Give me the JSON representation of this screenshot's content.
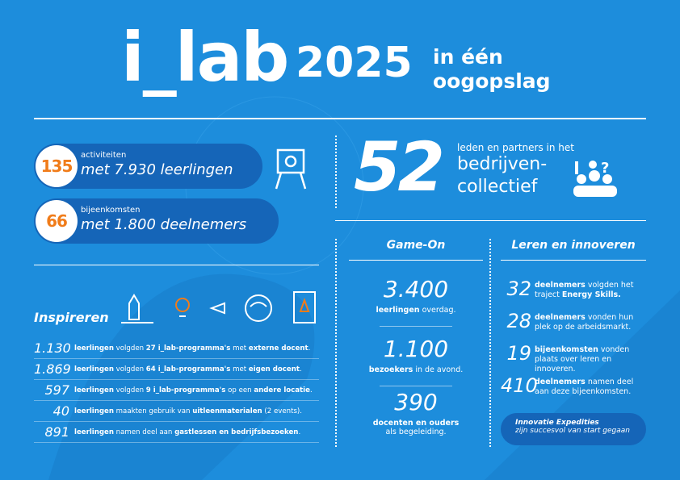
{
  "header": {
    "logo": "i_lab",
    "year": "2025",
    "tagline": [
      "in één",
      "oogopslag"
    ]
  },
  "highlights": [
    {
      "number": "135",
      "label": "activiteiten",
      "detail": "met 7.930 leerlingen"
    },
    {
      "number": "66",
      "label": "bijeenkomsten",
      "detail": "met 1.800 deelnemers"
    }
  ],
  "collective": {
    "number": "52",
    "label": "leden en partners in het",
    "lines": [
      "bedrijven-",
      "collectief"
    ]
  },
  "inspireren": {
    "title": "Inspireren",
    "rows": [
      {
        "number": "1.130",
        "segments": [
          {
            "text": "leerlingen",
            "bold": true
          },
          {
            "text": " volgden ",
            "bold": false
          },
          {
            "text": "27 i_lab-programma's",
            "bold": true
          },
          {
            "text": " met ",
            "bold": false
          },
          {
            "text": "externe docent",
            "bold": true
          },
          {
            "text": ".",
            "bold": false
          }
        ]
      },
      {
        "number": "1.869",
        "segments": [
          {
            "text": "leerlingen",
            "bold": true
          },
          {
            "text": " volgden ",
            "bold": false
          },
          {
            "text": "64 i_lab-programma's",
            "bold": true
          },
          {
            "text": " met ",
            "bold": false
          },
          {
            "text": "eigen docent",
            "bold": true
          },
          {
            "text": ".",
            "bold": false
          }
        ]
      },
      {
        "number": "597",
        "segments": [
          {
            "text": "leerlingen",
            "bold": true
          },
          {
            "text": " volgden ",
            "bold": false
          },
          {
            "text": "9 i_lab-programma's",
            "bold": true
          },
          {
            "text": " op een ",
            "bold": false
          },
          {
            "text": "andere locatie",
            "bold": true
          },
          {
            "text": ".",
            "bold": false
          }
        ]
      },
      {
        "number": "40",
        "segments": [
          {
            "text": "leerlingen",
            "bold": true
          },
          {
            "text": " maakten gebruik van ",
            "bold": false
          },
          {
            "text": "uitleenmaterialen",
            "bold": true
          },
          {
            "text": " (2 events).",
            "bold": false
          }
        ]
      },
      {
        "number": "891",
        "segments": [
          {
            "text": "leerlingen",
            "bold": true
          },
          {
            "text": " namen deel aan ",
            "bold": false
          },
          {
            "text": "gastlessen en bedrijfsbezoeken",
            "bold": true
          },
          {
            "text": ".",
            "bold": false
          }
        ]
      }
    ]
  },
  "game_on": {
    "title": "Game-On",
    "items": [
      {
        "number": "3.400",
        "segments": [
          {
            "text": "leerlingen",
            "bold": true
          },
          {
            "text": " overdag.",
            "bold": false
          }
        ]
      },
      {
        "number": "1.100",
        "segments": [
          {
            "text": "bezoekers",
            "bold": true
          },
          {
            "text": " in de avond.",
            "bold": false
          }
        ]
      },
      {
        "number": "390",
        "segments": [
          {
            "text": "docenten en ouders",
            "bold": true
          },
          {
            "text": " als begeleiding.",
            "bold": false
          }
        ]
      }
    ]
  },
  "leren": {
    "title": "Leren en innoveren",
    "items": [
      {
        "number": "32",
        "segments": [
          {
            "text": "deelnemers",
            "bold": true
          },
          {
            "text": " volgden het traject ",
            "bold": false
          },
          {
            "text": "Energy Skills.",
            "bold": true
          }
        ]
      },
      {
        "number": "28",
        "segments": [
          {
            "text": "deelnemers",
            "bold": true
          },
          {
            "text": " vonden hun plek op de arbeidsmarkt.",
            "bold": false
          }
        ]
      },
      {
        "number": "19",
        "segments": [
          {
            "text": "bijeenkomsten",
            "bold": true
          },
          {
            "text": " vonden plaats over leren en innoveren.",
            "bold": false
          }
        ]
      },
      {
        "number": "410",
        "segments": [
          {
            "text": "deelnemers",
            "bold": true
          },
          {
            "text": " namen deel aan deze bijeenkomsten.",
            "bold": false
          }
        ]
      }
    ],
    "note": [
      "Innovatie Expedities",
      "zijn succesvol van start gegaan"
    ]
  }
}
